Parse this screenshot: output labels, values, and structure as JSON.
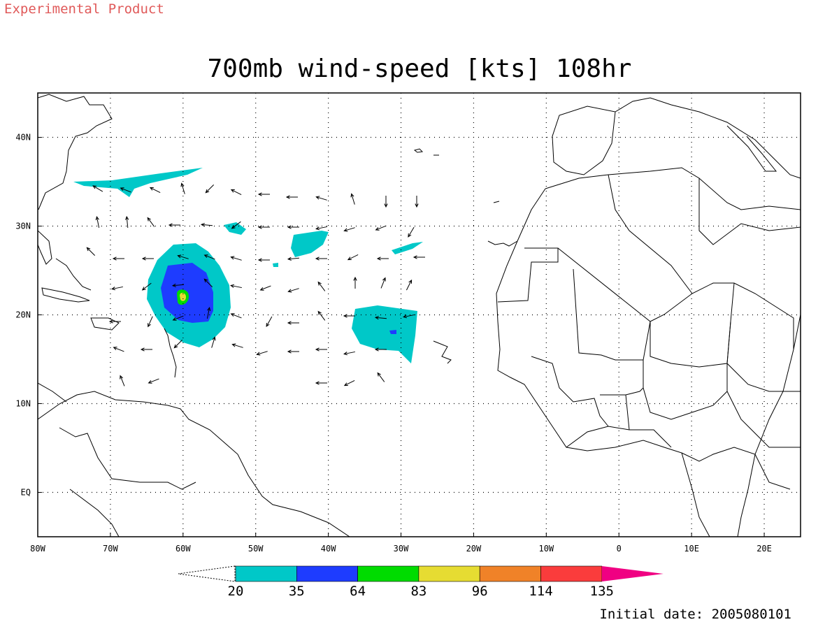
{
  "header": {
    "product_label": "Experimental Product",
    "title": "700mb wind-speed [kts] 108hr"
  },
  "map": {
    "lon_range": [
      -80,
      25
    ],
    "lat_range": [
      -5,
      45
    ],
    "lon_ticks": [
      {
        "value": -80,
        "label": "80W"
      },
      {
        "value": -70,
        "label": "70W"
      },
      {
        "value": -60,
        "label": "60W"
      },
      {
        "value": -50,
        "label": "50W"
      },
      {
        "value": -40,
        "label": "40W"
      },
      {
        "value": -30,
        "label": "30W"
      },
      {
        "value": -20,
        "label": "20W"
      },
      {
        "value": -10,
        "label": "10W"
      },
      {
        "value": 0,
        "label": "0"
      },
      {
        "value": 10,
        "label": "10E"
      },
      {
        "value": 20,
        "label": "20E"
      }
    ],
    "lat_ticks": [
      {
        "value": 40,
        "label": "40N"
      },
      {
        "value": 30,
        "label": "30N"
      },
      {
        "value": 20,
        "label": "20N"
      },
      {
        "value": 10,
        "label": "10N"
      },
      {
        "value": 0,
        "label": "EQ"
      }
    ],
    "grid": "dotted"
  },
  "colorbar": {
    "levels": [
      "20",
      "35",
      "64",
      "83",
      "96",
      "114",
      "135"
    ],
    "colors": [
      "#00c8c8",
      "#1e3cff",
      "#00dc00",
      "#e6dc32",
      "#f08228",
      "#fa3c3c",
      "#f00082"
    ]
  },
  "footer": {
    "initial_date": "Initial date: 2005080101"
  }
}
